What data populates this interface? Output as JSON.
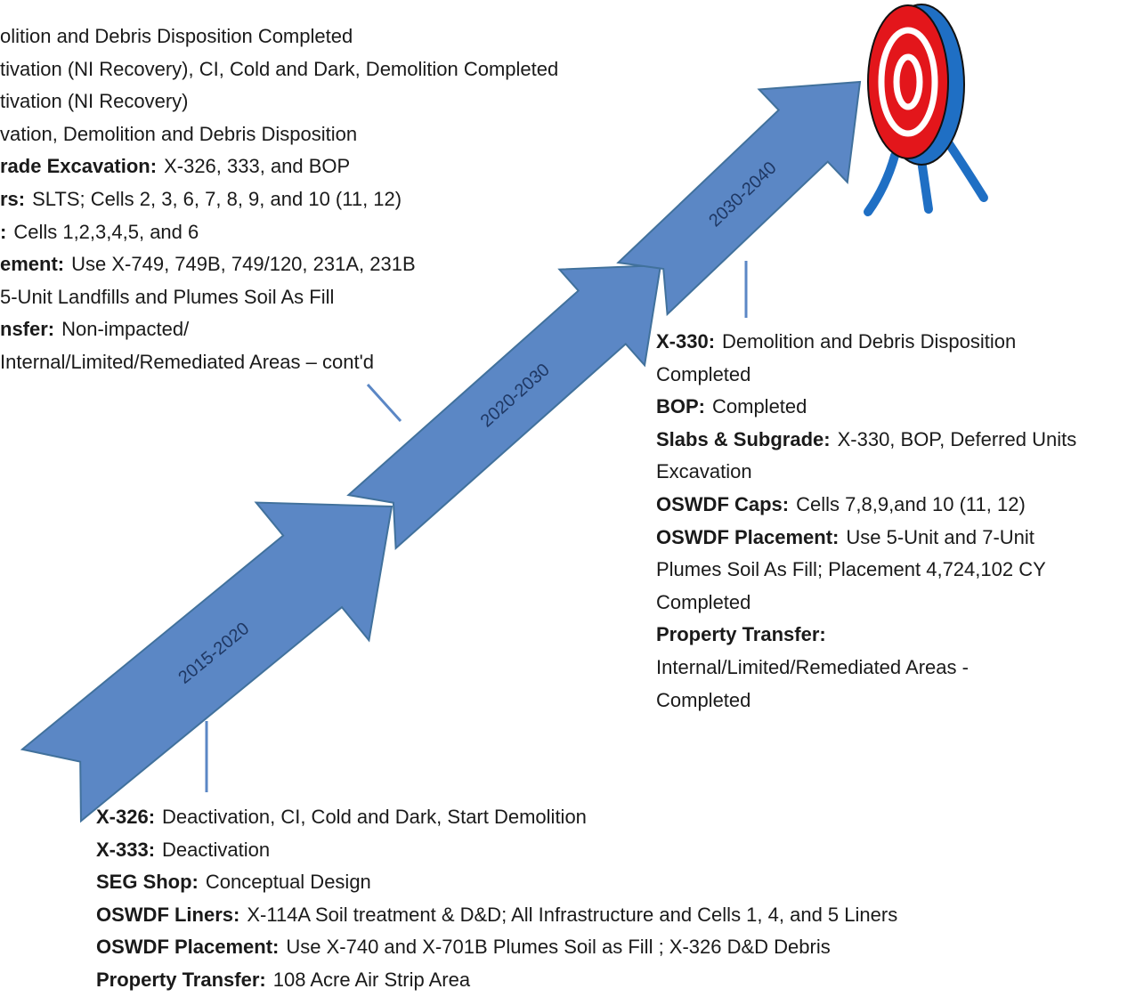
{
  "top_block": {
    "lines": [
      {
        "text": "olition and Debris Disposition Completed"
      },
      {
        "text": "tivation (NI Recovery), CI, Cold and Dark, Demolition Completed"
      },
      {
        "text": "tivation (NI Recovery)"
      },
      {
        "text": "vation, Demolition and Debris Disposition"
      },
      {
        "label": "rade Excavation:",
        "text": "X-326, 333, and BOP"
      },
      {
        "label": "rs:",
        "text": "SLTS; Cells 2, 3, 6, 7, 8, 9, and 10 (11, 12)"
      },
      {
        "label": ":",
        "text": "Cells 1,2,3,4,5,  and 6"
      },
      {
        "label": "ement:",
        "text": "Use X-749, 749B, 749/120, 231A, 231B"
      },
      {
        "text": "5-Unit Landfills and Plumes Soil As Fill"
      },
      {
        "label": "nsfer:",
        "text": "Non-impacted/"
      },
      {
        "text": "Internal/Limited/Remediated Areas – cont'd"
      }
    ]
  },
  "arrows": [
    {
      "label": "2015-2020"
    },
    {
      "label": "2020-2030"
    },
    {
      "label": "2030-2040"
    }
  ],
  "right_block": {
    "lines": [
      {
        "label": "X-330:",
        "text": "Demolition and Debris Disposition"
      },
      {
        "text": "Completed"
      },
      {
        "label": "BOP:",
        "text": "Completed"
      },
      {
        "label": "Slabs & Subgrade:",
        "text": "X-330, BOP, Deferred Units"
      },
      {
        "text": "Excavation"
      },
      {
        "label": "OSWDF Caps:",
        "text": "Cells 7,8,9,and 10 (11, 12)"
      },
      {
        "label": "OSWDF Placement:",
        "text": "Use 5-Unit and 7-Unit"
      },
      {
        "text": "Plumes Soil As Fill; Placement 4,724,102 CY"
      },
      {
        "text": "Completed"
      },
      {
        "label": "Property Transfer:"
      },
      {
        "text": "Internal/Limited/Remediated Areas -"
      },
      {
        "text": "Completed"
      }
    ]
  },
  "bottom_block": {
    "lines": [
      {
        "label": "X-326:",
        "text": "Deactivation, CI, Cold and Dark, Start Demolition"
      },
      {
        "label": "X-333:",
        "text": "Deactivation"
      },
      {
        "label": "SEG Shop:",
        "text": "Conceptual Design"
      },
      {
        "label": "OSWDF Liners:",
        "text": "X-114A Soil treatment & D&D; All Infrastructure and Cells 1, 4, and 5 Liners"
      },
      {
        "label": "OSWDF Placement:",
        "text": "Use X-740 and X-701B Plumes Soil as Fill ; X-326 D&D Debris"
      },
      {
        "label": "Property Transfer:",
        "text": "108 Acre Air Strip Area"
      }
    ]
  }
}
